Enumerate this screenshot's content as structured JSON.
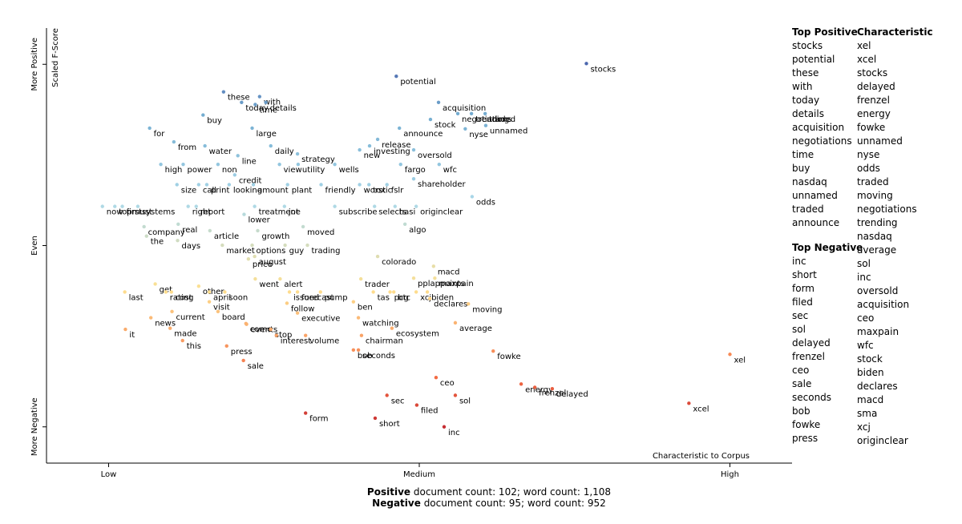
{
  "chart_data": {
    "type": "scatter",
    "xlabel": "Characteristic to Corpus",
    "ylabel": "Scaled F-Score",
    "xlim": [
      -10,
      110
    ],
    "ylim": [
      -10,
      110
    ],
    "xticks": [
      {
        "value": 0,
        "label": "Low"
      },
      {
        "value": 50,
        "label": "Medium"
      },
      {
        "value": 100,
        "label": "High"
      }
    ],
    "yticks": [
      {
        "value": 0,
        "label": "More Negative"
      },
      {
        "value": 50,
        "label": "Even"
      },
      {
        "value": 100,
        "label": "More Positive"
      }
    ],
    "color_scale": [
      "#a50026",
      "#f46d43",
      "#fee090",
      "#abd9e9",
      "#74add1",
      "#313695"
    ],
    "points": [
      {
        "label": "stocks",
        "x": 76.9,
        "y": 100.2
      },
      {
        "label": "potential",
        "x": 46.3,
        "y": 96.7
      },
      {
        "label": "negotiations",
        "x": 56.2,
        "y": 86.4
      },
      {
        "label": "acquisition",
        "x": 53.1,
        "y": 89.5
      },
      {
        "label": "traded",
        "x": 60.6,
        "y": 86.4
      },
      {
        "label": "stock",
        "x": 51.8,
        "y": 84.8
      },
      {
        "label": "unnamed",
        "x": 60.7,
        "y": 83.1
      },
      {
        "label": "nyse",
        "x": 57.4,
        "y": 82.2
      },
      {
        "label": "announce",
        "x": 46.8,
        "y": 82.4
      },
      {
        "label": "trending",
        "x": 58.4,
        "y": 86.4
      },
      {
        "label": "these",
        "x": 18.5,
        "y": 92.4
      },
      {
        "label": "with",
        "x": 24.3,
        "y": 91.1
      },
      {
        "label": "today",
        "x": 21.4,
        "y": 89.5
      },
      {
        "label": "time",
        "x": 23.6,
        "y": 88.9
      },
      {
        "label": "details",
        "x": 25.3,
        "y": 89.5
      },
      {
        "label": "buy",
        "x": 15.2,
        "y": 86.0
      },
      {
        "label": "large",
        "x": 23.1,
        "y": 82.4
      },
      {
        "label": "for",
        "x": 6.6,
        "y": 82.4
      },
      {
        "label": "from",
        "x": 10.5,
        "y": 78.6
      },
      {
        "label": "water",
        "x": 15.5,
        "y": 77.5
      },
      {
        "label": "daily",
        "x": 26.1,
        "y": 77.5
      },
      {
        "label": "strategy",
        "x": 30.4,
        "y": 75.3
      },
      {
        "label": "line",
        "x": 20.8,
        "y": 74.8
      },
      {
        "label": "release",
        "x": 43.3,
        "y": 79.3
      },
      {
        "label": "new",
        "x": 40.4,
        "y": 76.4
      },
      {
        "label": "investing",
        "x": 42.0,
        "y": 77.5
      },
      {
        "label": "oversold",
        "x": 49.1,
        "y": 76.4
      },
      {
        "label": "fargo",
        "x": 47.0,
        "y": 72.4
      },
      {
        "label": "high",
        "x": 8.4,
        "y": 72.4
      },
      {
        "label": "power",
        "x": 12.0,
        "y": 72.4
      },
      {
        "label": "non",
        "x": 17.6,
        "y": 72.4
      },
      {
        "label": "view",
        "x": 27.5,
        "y": 72.4
      },
      {
        "label": "utility",
        "x": 30.5,
        "y": 72.4
      },
      {
        "label": "wells",
        "x": 36.4,
        "y": 72.4
      },
      {
        "label": "wfc",
        "x": 53.2,
        "y": 72.4
      },
      {
        "label": "size",
        "x": 11.0,
        "y": 66.8
      },
      {
        "label": "credit",
        "x": 20.3,
        "y": 69.5
      },
      {
        "label": "plant",
        "x": 28.8,
        "y": 66.8
      },
      {
        "label": "friendly",
        "x": 34.2,
        "y": 66.8
      },
      {
        "label": "amount",
        "x": 23.3,
        "y": 66.8
      },
      {
        "label": "toxic",
        "x": 41.9,
        "y": 66.8
      },
      {
        "label": "fslr",
        "x": 44.8,
        "y": 66.8
      },
      {
        "label": "shareholder",
        "x": 49.1,
        "y": 68.4
      },
      {
        "label": "topmust",
        "x": 1.0,
        "y": 60.8
      },
      {
        "label": "systems",
        "x": 4.7,
        "y": 60.8
      },
      {
        "label": "call",
        "x": 14.5,
        "y": 66.8
      },
      {
        "label": "print",
        "x": 15.8,
        "y": 66.8
      },
      {
        "label": "looking",
        "x": 19.4,
        "y": 66.8
      },
      {
        "label": "worst",
        "x": 40.4,
        "y": 66.8
      },
      {
        "label": "hasi",
        "x": 46.1,
        "y": 60.8
      },
      {
        "label": "odds",
        "x": 58.5,
        "y": 63.5
      },
      {
        "label": "originclear",
        "x": 49.5,
        "y": 60.8
      },
      {
        "label": "now",
        "x": -1.0,
        "y": 60.8
      },
      {
        "label": "first",
        "x": 2.2,
        "y": 60.8
      },
      {
        "label": "right",
        "x": 12.8,
        "y": 60.8
      },
      {
        "label": "report",
        "x": 14.1,
        "y": 60.8
      },
      {
        "label": "joe",
        "x": 28.3,
        "y": 60.8
      },
      {
        "label": "lower",
        "x": 21.8,
        "y": 58.6
      },
      {
        "label": "treatment",
        "x": 23.5,
        "y": 60.8
      },
      {
        "label": "subscribe",
        "x": 36.4,
        "y": 60.8
      },
      {
        "label": "selects",
        "x": 42.8,
        "y": 60.8
      },
      {
        "label": "algo",
        "x": 47.7,
        "y": 55.9
      },
      {
        "label": "company",
        "x": 5.7,
        "y": 55.2
      },
      {
        "label": "real",
        "x": 11.2,
        "y": 55.9
      },
      {
        "label": "the",
        "x": 6.1,
        "y": 52.6
      },
      {
        "label": "days",
        "x": 11.1,
        "y": 51.4
      },
      {
        "label": "article",
        "x": 16.3,
        "y": 54.1
      },
      {
        "label": "growth",
        "x": 24.0,
        "y": 54.1
      },
      {
        "label": "moved",
        "x": 31.3,
        "y": 55.2
      },
      {
        "label": "market",
        "x": 18.3,
        "y": 50.1
      },
      {
        "label": "options",
        "x": 23.1,
        "y": 50.1
      },
      {
        "label": "guy",
        "x": 28.4,
        "y": 50.1
      },
      {
        "label": "trading",
        "x": 32.0,
        "y": 50.1
      },
      {
        "label": "price",
        "x": 22.5,
        "y": 46.3
      },
      {
        "label": "august",
        "x": 23.5,
        "y": 47.0
      },
      {
        "label": "colorado",
        "x": 43.3,
        "y": 47.0
      },
      {
        "label": "macd",
        "x": 52.3,
        "y": 44.3
      },
      {
        "label": "went",
        "x": 23.6,
        "y": 40.8
      },
      {
        "label": "alert",
        "x": 27.6,
        "y": 40.8
      },
      {
        "label": "trader",
        "x": 40.6,
        "y": 40.8
      },
      {
        "label": "pplappoints",
        "x": 49.1,
        "y": 41.0
      },
      {
        "label": "maxpain",
        "x": 52.5,
        "y": 41.0
      },
      {
        "label": "last",
        "x": 2.6,
        "y": 37.2
      },
      {
        "label": "get",
        "x": 7.5,
        "y": 39.4
      },
      {
        "label": "cost",
        "x": 10.1,
        "y": 37.2
      },
      {
        "label": "other",
        "x": 14.5,
        "y": 38.8
      },
      {
        "label": "soon",
        "x": 18.7,
        "y": 37.2
      },
      {
        "label": "issued",
        "x": 29.1,
        "y": 37.2
      },
      {
        "label": "forecast",
        "x": 30.4,
        "y": 37.2
      },
      {
        "label": "btc",
        "x": 45.9,
        "y": 37.2
      },
      {
        "label": "xcj",
        "x": 49.5,
        "y": 37.2
      },
      {
        "label": "biden",
        "x": 51.3,
        "y": 37.2
      },
      {
        "label": "rating",
        "x": 9.2,
        "y": 37.2
      },
      {
        "label": "april",
        "x": 16.2,
        "y": 37.2
      },
      {
        "label": "pump",
        "x": 34.1,
        "y": 37.2
      },
      {
        "label": "tas",
        "x": 42.6,
        "y": 37.2
      },
      {
        "label": "pcg",
        "x": 45.3,
        "y": 37.2
      },
      {
        "label": "declares",
        "x": 51.7,
        "y": 35.4
      },
      {
        "label": "visit",
        "x": 16.2,
        "y": 34.5
      },
      {
        "label": "follow",
        "x": 28.7,
        "y": 34.1
      },
      {
        "label": "ben",
        "x": 39.4,
        "y": 34.5
      },
      {
        "label": "moving",
        "x": 57.9,
        "y": 33.9
      },
      {
        "label": "news",
        "x": 6.8,
        "y": 30.1
      },
      {
        "label": "current",
        "x": 10.2,
        "y": 31.8
      },
      {
        "label": "executive",
        "x": 30.4,
        "y": 31.4
      },
      {
        "label": "watching",
        "x": 40.2,
        "y": 30.1
      },
      {
        "label": "come",
        "x": 22.1,
        "y": 28.5
      },
      {
        "label": "board",
        "x": 17.6,
        "y": 31.8
      },
      {
        "label": "events",
        "x": 22.2,
        "y": 28.3
      },
      {
        "label": "average",
        "x": 55.8,
        "y": 28.7
      },
      {
        "label": "it",
        "x": 2.7,
        "y": 26.9
      },
      {
        "label": "made",
        "x": 9.9,
        "y": 27.2
      },
      {
        "label": "stop",
        "x": 26.1,
        "y": 26.9
      },
      {
        "label": "interest",
        "x": 27.0,
        "y": 25.2
      },
      {
        "label": "volume",
        "x": 31.7,
        "y": 25.2
      },
      {
        "label": "ecosystem",
        "x": 45.6,
        "y": 27.2
      },
      {
        "label": "chairman",
        "x": 40.7,
        "y": 25.2
      },
      {
        "label": "this",
        "x": 11.9,
        "y": 23.8
      },
      {
        "label": "press",
        "x": 19.0,
        "y": 22.3
      },
      {
        "label": "bob",
        "x": 39.4,
        "y": 21.2
      },
      {
        "label": "seconds",
        "x": 40.2,
        "y": 21.2
      },
      {
        "label": "fowke",
        "x": 61.9,
        "y": 20.9
      },
      {
        "label": "xel",
        "x": 100.0,
        "y": 20.0
      },
      {
        "label": "sale",
        "x": 21.7,
        "y": 18.3
      },
      {
        "label": "energy",
        "x": 66.4,
        "y": 11.8
      },
      {
        "label": "frenzel",
        "x": 68.6,
        "y": 10.9
      },
      {
        "label": "delayed",
        "x": 71.4,
        "y": 10.5
      },
      {
        "label": "ceo",
        "x": 52.7,
        "y": 13.6
      },
      {
        "label": "sec",
        "x": 44.8,
        "y": 8.7
      },
      {
        "label": "sol",
        "x": 55.8,
        "y": 8.7
      },
      {
        "label": "filed",
        "x": 49.6,
        "y": 6.0
      },
      {
        "label": "xcel",
        "x": 93.4,
        "y": 6.5
      },
      {
        "label": "form",
        "x": 31.7,
        "y": 3.8
      },
      {
        "label": "short",
        "x": 42.9,
        "y": 2.4
      },
      {
        "label": "inc",
        "x": 54.0,
        "y": 0
      }
    ],
    "top_positive": {
      "title": "Top Positive",
      "terms": [
        "stocks",
        "potential",
        "these",
        "with",
        "today",
        "details",
        "acquisition",
        "negotiations",
        "time",
        "buy",
        "nasdaq",
        "unnamed",
        "traded",
        "announce"
      ]
    },
    "top_negative": {
      "title": "Top Negative",
      "terms": [
        "inc",
        "short",
        "form",
        "filed",
        "sec",
        "sol",
        "delayed",
        "frenzel",
        "ceo",
        "sale",
        "seconds",
        "bob",
        "fowke",
        "press"
      ]
    },
    "characteristic": {
      "title": "Characteristic",
      "terms": [
        "xel",
        "xcel",
        "stocks",
        "delayed",
        "frenzel",
        "energy",
        "fowke",
        "unnamed",
        "nyse",
        "odds",
        "traded",
        "moving",
        "negotiations",
        "trending",
        "nasdaq",
        "average",
        "sol",
        "inc",
        "oversold",
        "acquisition",
        "ceo",
        "maxpain",
        "wfc",
        "stock",
        "biden",
        "declares",
        "macd",
        "sma",
        "xcj",
        "originclear"
      ]
    },
    "footer": [
      {
        "category": "Positive",
        "text": "document count: 102; word count: 1,108"
      },
      {
        "category": "Negative",
        "text": "document count: 95; word count: 952"
      }
    ]
  }
}
